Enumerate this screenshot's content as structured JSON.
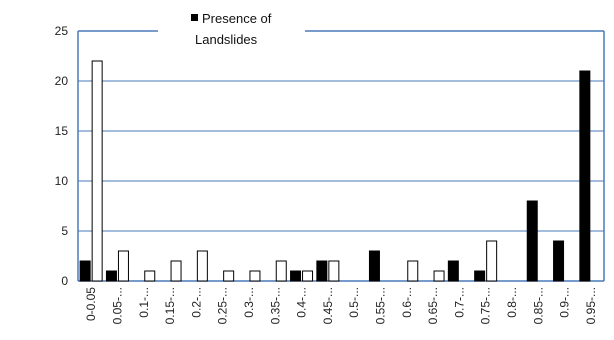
{
  "chart_data": {
    "type": "bar",
    "categories": [
      "0-0.05",
      "0.05-...",
      "0.1-...",
      "0.15-...",
      "0.2-...",
      "0.25-...",
      "0.3-...",
      "0.35-...",
      "0.4-...",
      "0.45-...",
      "0.5-...",
      "0.55-...",
      "0.6-...",
      "0.65-...",
      "0.7-...",
      "0.75-...",
      "0.8-...",
      "0.85-...",
      "0.9-...",
      "0.95-..."
    ],
    "series": [
      {
        "name": "Presence of Landslides",
        "color": "#000000",
        "values": [
          2,
          1,
          0,
          0,
          0,
          0,
          0,
          0,
          1,
          2,
          0,
          3,
          0,
          0,
          2,
          1,
          0,
          8,
          4,
          21
        ]
      },
      {
        "color": "#ffffff",
        "values": [
          22,
          3,
          1,
          2,
          3,
          1,
          1,
          2,
          1,
          2,
          0,
          0,
          2,
          1,
          0,
          4,
          0,
          0,
          0,
          0
        ]
      }
    ],
    "ylim": [
      0,
      25
    ],
    "yticks": [
      0,
      5,
      10,
      15,
      20,
      25
    ],
    "grid": true,
    "legend": {
      "position": "top",
      "entries": [
        "Presence of",
        "Landslides"
      ]
    },
    "colors": {
      "grid": "#4a7ab8",
      "frame": "#4a7ab8",
      "bar_outline": "#000000"
    }
  }
}
